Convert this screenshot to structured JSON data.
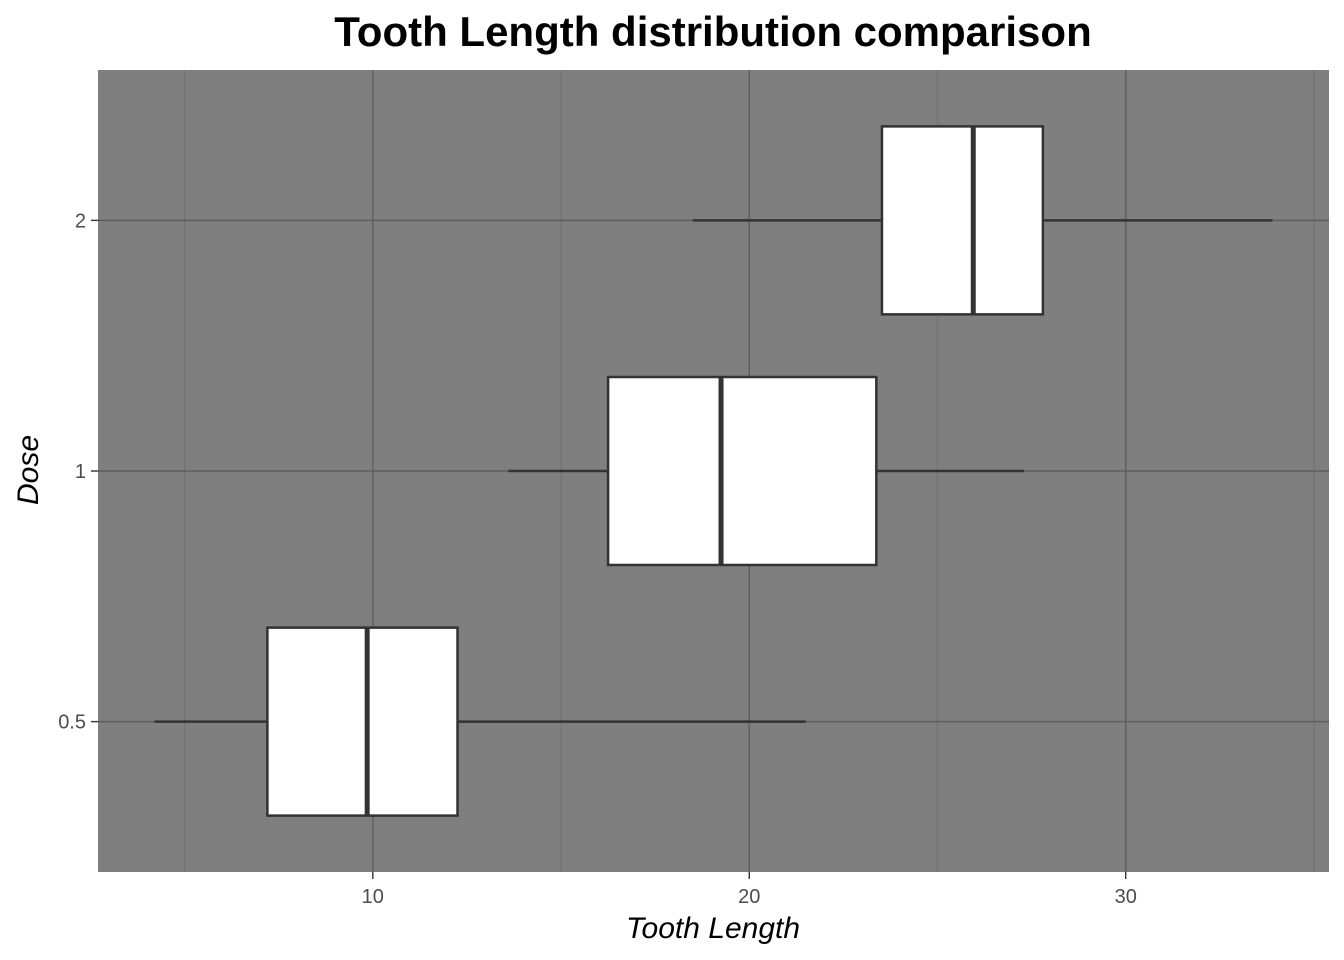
{
  "chart_data": {
    "type": "boxplot",
    "orientation": "horizontal",
    "title": "Tooth Length distribution comparison",
    "xlabel": "Tooth Length",
    "ylabel": "Dose",
    "xlim": [
      2.7,
      35.4
    ],
    "x_ticks": [
      10,
      20,
      30
    ],
    "x_tick_labels": [
      "10",
      "20",
      "30"
    ],
    "categories": [
      "0.5",
      "1",
      "2"
    ],
    "grid": true,
    "legend": "none",
    "colors": {
      "panel_background": "#7f7f7f",
      "grid_major": "#5e5e5e",
      "grid_minor": "#727272",
      "box_fill": "#ffffff",
      "box_stroke": "#333333",
      "tick_label": "#4d4d4d"
    },
    "boxes": [
      {
        "category": "0.5",
        "whisker_low": 4.2,
        "q1": 7.2,
        "median": 9.85,
        "q3": 12.25,
        "whisker_high": 21.5,
        "outliers": []
      },
      {
        "category": "1",
        "whisker_low": 13.6,
        "q1": 16.25,
        "median": 19.25,
        "q3": 23.375,
        "whisker_high": 27.3,
        "outliers": []
      },
      {
        "category": "2",
        "whisker_low": 18.5,
        "q1": 23.525,
        "median": 25.95,
        "q3": 27.8,
        "whisker_high": 33.9,
        "outliers": []
      }
    ]
  }
}
